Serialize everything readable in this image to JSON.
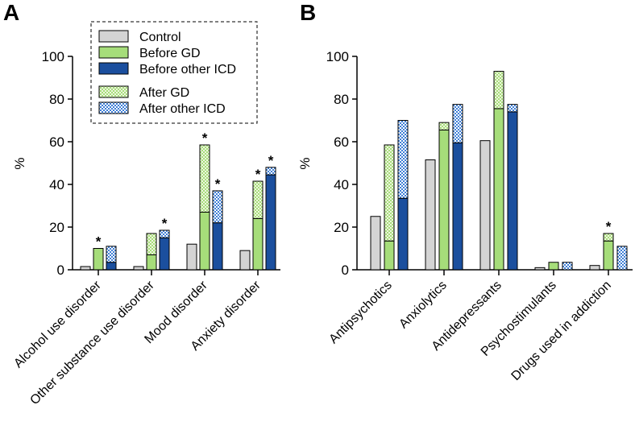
{
  "colors": {
    "control": "#d4d4d4",
    "before_gd": "#a6dd7a",
    "before_other": "#1b4f9e",
    "after_gd_bg": "#eef6df",
    "after_gd_dot": "#a6dd7a",
    "after_other_bg": "#ffffff",
    "after_other_dot": "#3f7fd6",
    "axis": "#000000"
  },
  "legend": {
    "control": "Control",
    "before_gd": "Before GD",
    "before_other": "Before other ICD",
    "after_gd": "After GD",
    "after_other": "After other ICD"
  },
  "chart_data": [
    {
      "panel_label": "A",
      "type": "bar",
      "stacked_groups": true,
      "ylabel": "%",
      "ylim": [
        0,
        100
      ],
      "yticks": [
        "0",
        "20",
        "40",
        "60",
        "80",
        "100"
      ],
      "categories": [
        "Alcohol use disorder",
        "Other substance use disorder",
        "Mood disorder",
        "Anxiety disorder"
      ],
      "series": [
        {
          "name": "Control",
          "values": [
            1.5,
            1.5,
            12,
            9
          ]
        },
        {
          "name": "Before GD",
          "values": [
            10,
            7,
            27,
            24
          ]
        },
        {
          "name": "After GD",
          "values": [
            0,
            10,
            31.5,
            17.5
          ]
        },
        {
          "name": "Before other ICD",
          "values": [
            3.5,
            15,
            22,
            44.5
          ]
        },
        {
          "name": "After other ICD",
          "values": [
            7.5,
            3.5,
            15,
            3.5
          ]
        }
      ],
      "significance": [
        {
          "category": "Alcohol use disorder",
          "bar": "GD",
          "label": "*"
        },
        {
          "category": "Other substance use disorder",
          "bar": "Other ICD",
          "label": "*"
        },
        {
          "category": "Mood disorder",
          "bar": "GD",
          "label": "*"
        },
        {
          "category": "Mood disorder",
          "bar": "Other ICD",
          "label": "*"
        },
        {
          "category": "Anxiety disorder",
          "bar": "GD",
          "label": "*"
        },
        {
          "category": "Anxiety disorder",
          "bar": "Other ICD",
          "label": "*"
        }
      ]
    },
    {
      "panel_label": "B",
      "type": "bar",
      "stacked_groups": true,
      "ylabel": "%",
      "ylim": [
        0,
        100
      ],
      "yticks": [
        "0",
        "20",
        "40",
        "60",
        "80",
        "100"
      ],
      "categories": [
        "Antipsychotics",
        "Anxiolytics",
        "Antidepressants",
        "Psychostimulants",
        "Drugs used in addiction"
      ],
      "series": [
        {
          "name": "Control",
          "values": [
            25,
            51.5,
            60.5,
            1,
            2
          ]
        },
        {
          "name": "Before GD",
          "values": [
            13.5,
            65.5,
            75.5,
            3.5,
            13.5
          ]
        },
        {
          "name": "After GD",
          "values": [
            45,
            3.5,
            17.5,
            0,
            3.5
          ]
        },
        {
          "name": "Before other ICD",
          "values": [
            33.5,
            59.5,
            74,
            0,
            0
          ]
        },
        {
          "name": "After other ICD",
          "values": [
            36.5,
            18,
            3.5,
            3.5,
            11
          ]
        }
      ],
      "significance": [
        {
          "category": "Drugs used in addiction",
          "bar": "GD",
          "label": "*"
        }
      ]
    }
  ]
}
